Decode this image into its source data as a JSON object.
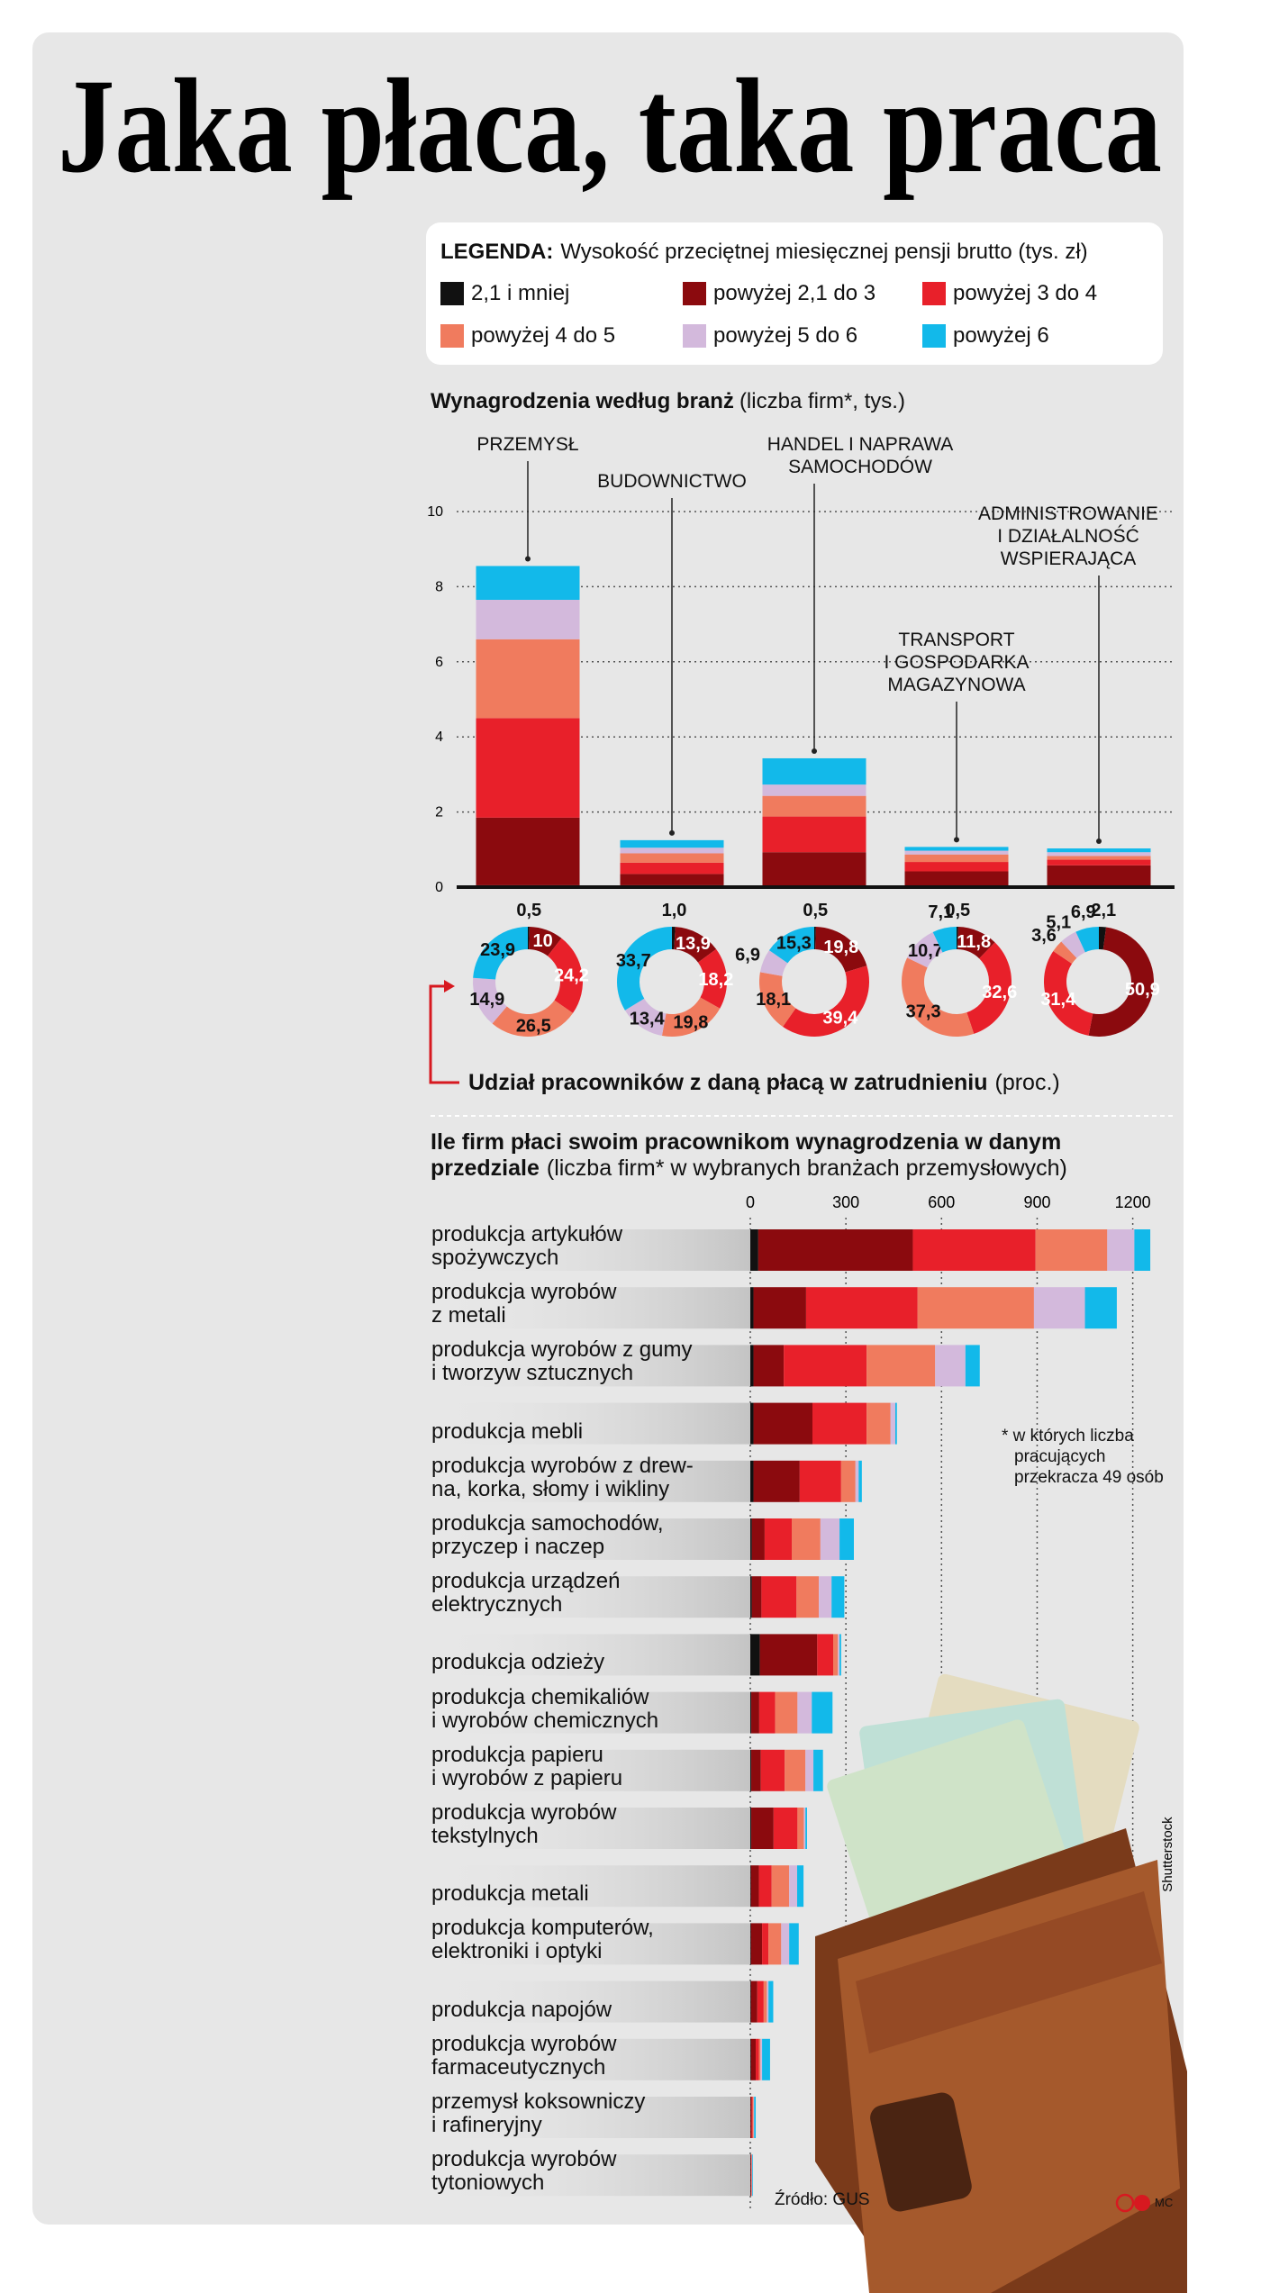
{
  "title": "Jaka płaca, taka praca",
  "source": "Źródło: GUS",
  "credit": "Shutterstock",
  "author": "MC",
  "chart_data": [
    {
      "type": "bar",
      "stacked": true,
      "title": "Wynagrodzenia według branż",
      "subtitle": "(liczba firm*, tys.)",
      "legend_title": "LEGENDA:",
      "legend_text": "Wysokość przeciętnej miesięcznej pensji brutto (tys. zł)",
      "categories": [
        "PRZEMYSŁ",
        "BUDOWNICTWO",
        "HANDEL I NAPRAWA\nSAMOCHODÓW",
        "TRANSPORT\nI GOSPODARKA\nMAGAZYNOWA",
        "ADMINISTROWANIE\nI DZIAŁALNOŚĆ\nWSPIERAJĄCA"
      ],
      "series": [
        {
          "name": "2,1 i mniej",
          "color": "#111111",
          "values": [
            0.05,
            0.05,
            0.03,
            0.02,
            0.03
          ]
        },
        {
          "name": "powyżej 2,1 do 3",
          "color": "#8b0a0e",
          "values": [
            1.8,
            0.3,
            0.9,
            0.4,
            0.55
          ]
        },
        {
          "name": "powyżej 3 do 4",
          "color": "#e8202a",
          "values": [
            2.65,
            0.3,
            0.95,
            0.25,
            0.15
          ]
        },
        {
          "name": "powyżej 4 do 5",
          "color": "#f07b5e",
          "values": [
            2.1,
            0.25,
            0.55,
            0.2,
            0.1
          ]
        },
        {
          "name": "powyżej 5 do 6",
          "color": "#d3b9dc",
          "values": [
            1.05,
            0.15,
            0.3,
            0.1,
            0.1
          ]
        },
        {
          "name": "powyżej 6",
          "color": "#12b9ea",
          "values": [
            0.9,
            0.2,
            0.7,
            0.1,
            0.1
          ]
        }
      ],
      "ylim": [
        0,
        10
      ],
      "yticks": [
        0,
        2,
        4,
        6,
        8,
        10
      ],
      "grid": true
    },
    {
      "type": "pie",
      "donut": true,
      "title": "Udział pracowników z daną płacą w zatrudnieniu",
      "subtitle": "(proc.)",
      "colors": [
        "#111111",
        "#8b0a0e",
        "#e8202a",
        "#f07b5e",
        "#d3b9dc",
        "#12b9ea"
      ],
      "pies": [
        {
          "values": [
            0.5,
            10,
            24.2,
            26.5,
            14.9,
            23.9
          ],
          "value_labels": [
            "0,5",
            "10",
            "24,2",
            "26,5",
            "14,9",
            "23,9"
          ]
        },
        {
          "values": [
            1.0,
            13.9,
            18.2,
            19.8,
            13.4,
            33.7
          ],
          "value_labels": [
            "1,0",
            "13,9",
            "18,2",
            "19,8",
            "13,4",
            "33,7"
          ]
        },
        {
          "values": [
            0.5,
            19.8,
            39.4,
            18.1,
            6.9,
            15.3
          ],
          "value_labels": [
            "0,5",
            "19,8",
            "39,4",
            "18,1",
            "6,9",
            "15,3"
          ]
        },
        {
          "values": [
            0.5,
            11.8,
            32.6,
            37.3,
            10.7,
            7.1
          ],
          "value_labels": [
            "0,5",
            "11,8",
            "32,6",
            "37,3",
            "10,7",
            "7,1"
          ]
        },
        {
          "values": [
            2.1,
            50.9,
            31.4,
            3.6,
            5.1,
            6.9
          ],
          "value_labels": [
            "2,1",
            "50,9",
            "31,4",
            "3,6",
            "5,1",
            "6,9"
          ]
        }
      ]
    },
    {
      "type": "hbar",
      "stacked": true,
      "title": "Ile firm płaci swoim pracownikom wynagrodzenia w danym przedziale",
      "subtitle": "(liczba firm* w wybranych branżach przemysłowych)",
      "note": "* w których liczba\npracujących\nprzekracza 49 osób",
      "categories": [
        "produkcja artykułów\nspożywczych",
        "produkcja wyrobów\nz metali",
        "produkcja wyrobów z gumy\ni tworzyw sztucznych",
        "produkcja mebli",
        "produkcja wyrobów z drew-\nna, korka, słomy i wikliny",
        "produkcja samochodów,\nprzyczep i naczep",
        "produkcja urządzeń\nelektrycznych",
        "produkcja odzieży",
        "produkcja chemikaliów\ni wyrobów chemicznych",
        "produkcja papieru\ni wyrobów z papieru",
        "produkcja wyrobów\ntekstylnych",
        "produkcja metali",
        "produkcja komputerów,\nelektroniki i optyki",
        "produkcja napojów",
        "produkcja wyrobów\nfarmaceutycznych",
        "przemysł koksowniczy\ni rafineryjny",
        "produkcja wyrobów\ntytoniowych"
      ],
      "series": [
        {
          "color": "#111111",
          "values": [
            25,
            10,
            10,
            10,
            10,
            5,
            5,
            30,
            3,
            3,
            3,
            2,
            2,
            2,
            2,
            1,
            1
          ]
        },
        {
          "color": "#8b0a0e",
          "values": [
            485,
            165,
            95,
            185,
            145,
            40,
            30,
            180,
            25,
            30,
            70,
            25,
            35,
            20,
            15,
            3,
            2
          ]
        },
        {
          "color": "#e8202a",
          "values": [
            385,
            350,
            260,
            170,
            130,
            85,
            110,
            50,
            50,
            75,
            75,
            40,
            20,
            20,
            10,
            3,
            1
          ]
        },
        {
          "color": "#f07b5e",
          "values": [
            225,
            365,
            215,
            75,
            45,
            90,
            70,
            15,
            70,
            65,
            20,
            55,
            40,
            10,
            5,
            3,
            1
          ]
        },
        {
          "color": "#d3b9dc",
          "values": [
            85,
            160,
            95,
            15,
            10,
            60,
            40,
            5,
            45,
            25,
            5,
            25,
            25,
            5,
            5,
            2,
            1
          ]
        },
        {
          "color": "#12b9ea",
          "values": [
            50,
            100,
            45,
            5,
            10,
            45,
            40,
            5,
            65,
            30,
            5,
            20,
            30,
            15,
            25,
            5,
            2
          ]
        }
      ],
      "xlim": [
        0,
        1300
      ],
      "xticks": [
        0,
        300,
        600,
        900,
        1200
      ],
      "grid": true
    }
  ]
}
